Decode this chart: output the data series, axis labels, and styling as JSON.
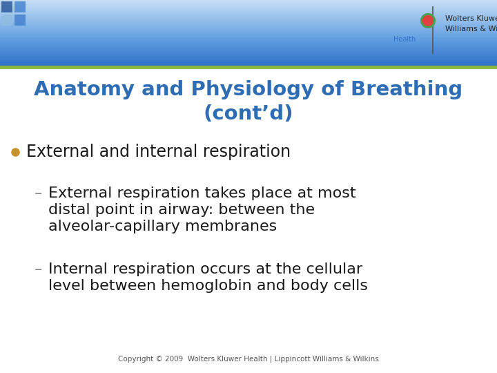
{
  "title_line1": "Anatomy and Physiology of Breathing",
  "title_line2": "(cont’d)",
  "title_color": "#2E6DB4",
  "bullet_color": "#C8922A",
  "bullet_text": "External and internal respiration",
  "sub1_line1": "External respiration takes place at most",
  "sub1_line2": "distal point in airway: between the",
  "sub1_line3": "alveolar-capillary membranes",
  "sub2_line1": "Internal respiration occurs at the cellular",
  "sub2_line2": "level between hemoglobin and body cells",
  "body_color": "#1a1a1a",
  "dash_color": "#888888",
  "bg_color": "#ffffff",
  "header_top_color": "#3070c8",
  "header_mid_color": "#5a9ae0",
  "header_bottom_color": "#c8dff5",
  "green_line_color": "#8ab840",
  "sq_dark": "#1a4a90",
  "sq_mid": "#3a7acc",
  "sq_light": "#90bce0",
  "copyright_text": "Copyright © 2009  Wolters Kluwer Health | Lippincott Williams & Wilkins",
  "copyright_color": "#555555",
  "logo_text1": "Wolters Kluwer | Lippincott",
  "logo_text2": "Williams & Wilkins",
  "logo_health": "Health",
  "logo_color": "#222222",
  "logo_health_color": "#3070c8"
}
